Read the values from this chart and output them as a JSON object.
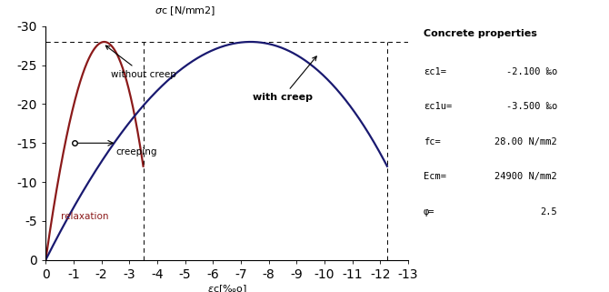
{
  "fc": 28.0,
  "Ecm": 24900,
  "ec1": -2.1,
  "ec1u": -3.5,
  "phi": 2.5,
  "color_no_creep": "#8B1A1A",
  "color_with_creep": "#191970",
  "label_without_creep": "without creep",
  "label_with_creep": "with creep",
  "properties_title": "Concrete properties",
  "prop_rows": [
    [
      "εc1=",
      "-2.100 ‰o"
    ],
    [
      "εc1u=",
      "-3.500 ‰o"
    ],
    [
      "fc=",
      "28.00 N/mm2"
    ],
    [
      "Ecm=",
      "24900 N/mm2"
    ],
    [
      "φ=",
      "2.5"
    ]
  ]
}
